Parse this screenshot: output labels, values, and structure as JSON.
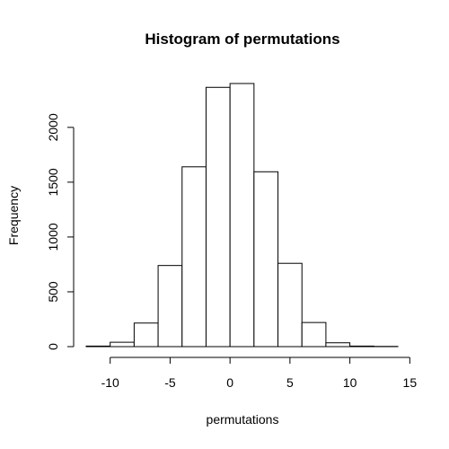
{
  "chart_data": {
    "type": "bar",
    "title": "Histogram of permutations",
    "xlabel": "permutations",
    "ylabel": "Frequency",
    "bins": [
      {
        "x0": -12,
        "x1": -10,
        "count": 5
      },
      {
        "x0": -10,
        "x1": -8,
        "count": 40
      },
      {
        "x0": -8,
        "x1": -6,
        "count": 215
      },
      {
        "x0": -6,
        "x1": -4,
        "count": 740
      },
      {
        "x0": -4,
        "x1": -2,
        "count": 1640
      },
      {
        "x0": -2,
        "x1": 0,
        "count": 2365
      },
      {
        "x0": 0,
        "x1": 2,
        "count": 2400
      },
      {
        "x0": 2,
        "x1": 4,
        "count": 1595
      },
      {
        "x0": 4,
        "x1": 6,
        "count": 760
      },
      {
        "x0": 6,
        "x1": 8,
        "count": 220
      },
      {
        "x0": 8,
        "x1": 10,
        "count": 35
      },
      {
        "x0": 10,
        "x1": 12,
        "count": 5
      },
      {
        "x0": 12,
        "x1": 14,
        "count": 2
      }
    ],
    "x_ticks": [
      -10,
      -5,
      0,
      5,
      10,
      15
    ],
    "x_tick_labels": [
      "-10",
      "-5",
      "0",
      "5",
      "10",
      "15"
    ],
    "y_ticks": [
      0,
      500,
      1000,
      1500,
      2000
    ],
    "y_tick_labels": [
      "0",
      "500",
      "1000",
      "1500",
      "2000"
    ],
    "xlim": [
      -12,
      14
    ],
    "ylim": [
      0,
      2400
    ],
    "grid": false,
    "legend": "none"
  }
}
